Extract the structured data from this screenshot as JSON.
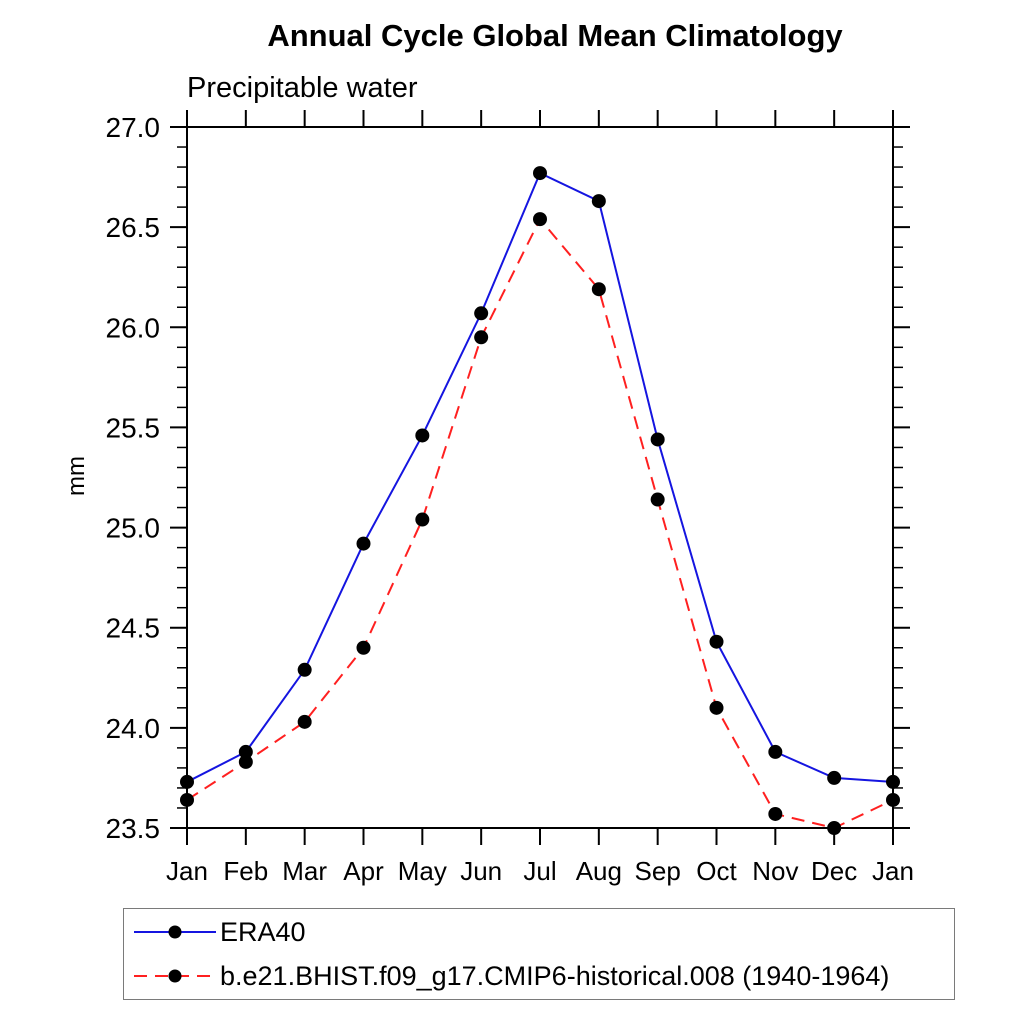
{
  "header": {
    "title": "Annual Cycle Global Mean Climatology",
    "subtitle": "Precipitable water"
  },
  "chart_data": {
    "type": "line",
    "title": "Annual Cycle Global Mean Climatology",
    "subtitle": "Precipitable water",
    "xlabel": "",
    "ylabel": "mm",
    "x_categories": [
      "Jan",
      "Feb",
      "Mar",
      "Apr",
      "May",
      "Jun",
      "Jul",
      "Aug",
      "Sep",
      "Oct",
      "Nov",
      "Dec",
      "Jan"
    ],
    "ylim": [
      23.5,
      27.0
    ],
    "y_major_ticks": [
      "23.5",
      "24.0",
      "24.5",
      "25.0",
      "25.5",
      "26.0",
      "26.5",
      "27.0"
    ],
    "y_minor_step": 0.1,
    "grid": false,
    "frame_color": "#000000",
    "legend_position": "bottom-left-boxed",
    "series": [
      {
        "name": "ERA40",
        "color": "#1515e0",
        "line_style": "solid",
        "marker": "filled-circle",
        "marker_color": "#000000",
        "values": [
          23.73,
          23.88,
          24.29,
          24.92,
          25.46,
          26.07,
          26.77,
          26.63,
          25.44,
          24.43,
          23.88,
          23.75,
          23.73
        ]
      },
      {
        "name": "b.e21.BHIST.f09_g17.CMIP6-historical.008 (1940-1964)",
        "color": "#ff2020",
        "line_style": "dashed",
        "marker": "filled-circle",
        "marker_color": "#000000",
        "values": [
          23.64,
          23.83,
          24.03,
          24.4,
          25.04,
          25.95,
          26.54,
          26.19,
          25.14,
          24.1,
          23.57,
          23.5,
          23.64
        ]
      }
    ]
  }
}
